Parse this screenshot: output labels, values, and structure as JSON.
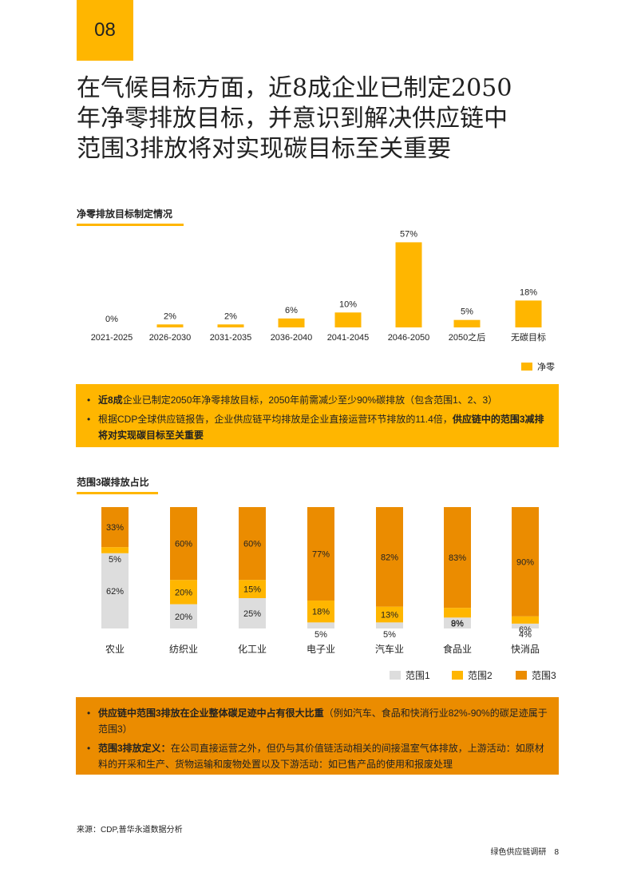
{
  "page": {
    "number": "08"
  },
  "headline": {
    "lines": [
      "在气候目标方面，近8成企业已制定2050",
      "年净零排放目标，并意识到解决供应链中",
      "范围3排放将对实现碳目标至关重要"
    ]
  },
  "section1": {
    "title": "净零排放目标制定情况"
  },
  "chart1": {
    "chart_data": {
      "type": "bar",
      "categories": [
        "2021-2025",
        "2026-2030",
        "2031-2035",
        "2036-2040",
        "2041-2045",
        "2046-2050",
        "2050之后",
        "无碳目标"
      ],
      "values": [
        0,
        2,
        2,
        6,
        10,
        57,
        5,
        18
      ],
      "value_labels": [
        "0%",
        "2%",
        "2%",
        "6%",
        "10%",
        "57%",
        "5%",
        "18%"
      ],
      "legend": [
        "净零"
      ],
      "color": "#FFB600"
    }
  },
  "callout1": {
    "items": [
      [
        {
          "t": "近8成",
          "b": true
        },
        {
          "t": "企业已制定2050年净零排放目标，2050年前需减少至少90%碳排放（包含范围1、2、3）",
          "b": false
        }
      ],
      [
        {
          "t": "根据CDP全球供应链报告，企业供应链平均排放是企业直接运营环节排放的11.4倍，",
          "b": false
        },
        {
          "t": "供应链中的范围3减排将对实现碳目标至关重要",
          "b": true
        }
      ]
    ]
  },
  "section2": {
    "title": "范围3碳排放占比"
  },
  "chart2": {
    "chart_data": {
      "type": "bar",
      "stacked": true,
      "categories": [
        "农业",
        "纺织业",
        "化工业",
        "电子业",
        "汽车业",
        "食品业",
        "快消品"
      ],
      "series": [
        {
          "name": "范围1",
          "values": [
            62,
            20,
            25,
            5,
            5,
            9,
            4
          ],
          "labels": [
            "62%",
            "20%",
            "25%",
            "5%",
            "5%",
            "9%",
            "4%"
          ],
          "color": "#DDDDDD"
        },
        {
          "name": "范围2",
          "values": [
            5,
            20,
            15,
            18,
            13,
            8,
            6
          ],
          "labels": [
            "5%",
            "20%",
            "15%",
            "18%",
            "13%",
            "8%",
            "6%"
          ],
          "color": "#FFB600"
        },
        {
          "name": "范围3",
          "values": [
            33,
            60,
            60,
            77,
            82,
            83,
            90
          ],
          "labels": [
            "33%",
            "60%",
            "60%",
            "77%",
            "82%",
            "83%",
            "90%"
          ],
          "color": "#EB8C00"
        }
      ]
    }
  },
  "callout2": {
    "items": [
      [
        {
          "t": "供应链中范围3排放在企业整体碳足迹中占有很大比重",
          "b": true
        },
        {
          "t": "（例如汽车、食品和快消行业82%-90%的碳足迹属于范围3）",
          "b": false
        }
      ],
      [
        {
          "t": "范围3排放定义：",
          "b": true
        },
        {
          "t": "在公司直接运营之外，但仍与其价值链活动相关的间接温室气体排放，上游活动：如原材料的开采和生产、货物运输和废物处置以及下游活动：如已售产品的使用和报废处理",
          "b": false
        }
      ]
    ]
  },
  "footer": {
    "source": "来源：CDP,普华永道数据分析",
    "report_title": "绿色供应链调研",
    "page": "8"
  },
  "colors": {
    "accent": "#FFB600",
    "accent_dark": "#EB8C00",
    "grey": "#DDDDDD"
  }
}
